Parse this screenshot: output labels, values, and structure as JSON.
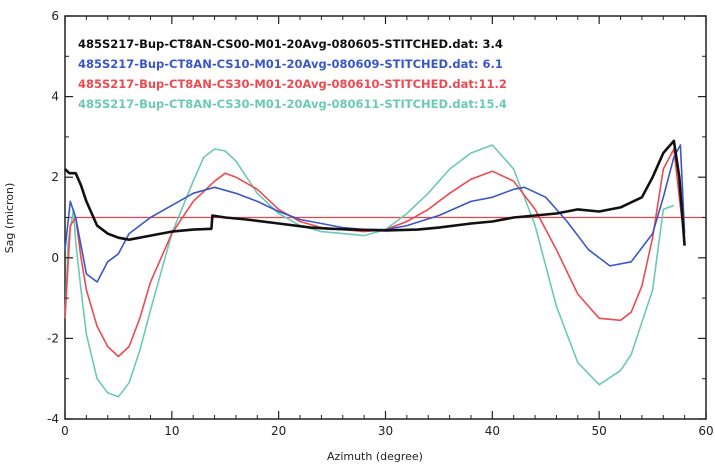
{
  "chart_data": {
    "type": "line",
    "title": "",
    "xlabel": "Azimuth (degree)",
    "ylabel": "Sag (micron)",
    "xlim": [
      0,
      60
    ],
    "ylim": [
      -4,
      6
    ],
    "x_ticks": [
      "0",
      "10",
      "20",
      "30",
      "40",
      "50",
      "60"
    ],
    "y_ticks": [
      "-4",
      "-2",
      "0",
      "2",
      "4",
      "6"
    ],
    "grid": false,
    "legend_position": "top-left",
    "reference_line": {
      "y": 1.0,
      "color": "#e8454d"
    },
    "series": [
      {
        "name": "485S217-Bup-CT8AN-CS00-M01-20Avg-080605-STITCHED.dat: 3.4",
        "color": "#111111",
        "x": [
          0,
          0.4,
          1,
          1.5,
          2,
          3,
          4,
          5,
          6,
          8,
          10,
          12,
          13.7,
          13.8,
          15,
          17,
          20,
          23,
          25,
          27,
          30,
          33,
          35,
          38,
          40,
          42,
          44,
          46,
          48,
          50,
          52,
          54,
          55,
          56,
          57,
          57.5,
          58
        ],
        "y": [
          2.2,
          2.1,
          2.1,
          1.8,
          1.4,
          0.8,
          0.6,
          0.5,
          0.45,
          0.55,
          0.65,
          0.7,
          0.72,
          1.05,
          1.0,
          0.95,
          0.85,
          0.75,
          0.72,
          0.7,
          0.68,
          0.7,
          0.75,
          0.85,
          0.9,
          1.0,
          1.05,
          1.1,
          1.2,
          1.15,
          1.25,
          1.5,
          2.0,
          2.6,
          2.9,
          2.0,
          0.3
        ]
      },
      {
        "name": "485S217-Bup-CT8AN-CS10-M01-20Avg-080609-STITCHED.dat: 6.1",
        "color": "#3a57c9",
        "x": [
          0,
          0.5,
          1,
          2,
          3,
          4,
          5,
          6,
          8,
          10,
          12,
          14,
          16,
          18,
          20,
          22,
          24,
          26,
          28,
          30,
          32,
          35,
          38,
          40,
          42,
          43,
          45,
          47,
          49,
          51,
          53,
          55,
          56,
          57,
          57.6,
          58
        ],
        "y": [
          0.2,
          1.4,
          1.0,
          -0.4,
          -0.6,
          -0.1,
          0.1,
          0.6,
          1.0,
          1.3,
          1.6,
          1.75,
          1.6,
          1.4,
          1.15,
          0.95,
          0.85,
          0.75,
          0.7,
          0.7,
          0.8,
          1.05,
          1.4,
          1.5,
          1.7,
          1.75,
          1.5,
          0.9,
          0.2,
          -0.2,
          -0.1,
          0.6,
          1.5,
          2.5,
          2.8,
          0.6
        ]
      },
      {
        "name": "485S217-Bup-CT8AN-CS30-M01-20Avg-080610-STITCHED.dat:11.2",
        "color": "#ec4a50",
        "x": [
          0,
          0.5,
          1,
          1.5,
          2,
          3,
          4,
          5,
          6,
          7,
          8,
          10,
          12,
          14,
          15,
          16,
          18,
          20,
          22,
          24,
          26,
          28,
          30,
          32,
          34,
          36,
          38,
          40,
          42,
          44,
          46,
          48,
          50,
          52,
          53,
          54,
          55,
          56,
          57,
          57.5,
          58
        ],
        "y": [
          -1.5,
          0.8,
          1.0,
          0.0,
          -0.8,
          -1.7,
          -2.2,
          -2.45,
          -2.2,
          -1.5,
          -0.6,
          0.6,
          1.4,
          1.9,
          2.1,
          2.0,
          1.7,
          1.2,
          0.9,
          0.75,
          0.7,
          0.65,
          0.7,
          0.9,
          1.2,
          1.6,
          1.95,
          2.15,
          1.9,
          1.2,
          0.2,
          -0.9,
          -1.5,
          -1.55,
          -1.35,
          -0.7,
          0.5,
          2.2,
          2.7,
          1.5,
          0.4
        ]
      },
      {
        "name": "485S217-Bup-CT8AN-CS30-M01-20Avg-080611-STITCHED.dat:15.4",
        "color": "#6cc9b5",
        "x": [
          0,
          0.3,
          0.8,
          1,
          1.5,
          2,
          3,
          4,
          5,
          6,
          7,
          8,
          10,
          12,
          13,
          14,
          15,
          16,
          18,
          20,
          22,
          24,
          26,
          28,
          30,
          32,
          34,
          36,
          38,
          40,
          42,
          44,
          46,
          48,
          50,
          52,
          53,
          54,
          55,
          56,
          57
        ],
        "y": [
          -1.5,
          0.4,
          1.2,
          0.4,
          -0.8,
          -1.9,
          -3.0,
          -3.35,
          -3.45,
          -3.1,
          -2.3,
          -1.3,
          0.6,
          1.9,
          2.5,
          2.7,
          2.65,
          2.4,
          1.6,
          1.1,
          0.8,
          0.65,
          0.6,
          0.55,
          0.7,
          1.1,
          1.6,
          2.2,
          2.6,
          2.8,
          2.2,
          0.8,
          -1.2,
          -2.6,
          -3.15,
          -2.8,
          -2.4,
          -1.6,
          -0.8,
          1.2,
          1.3
        ]
      }
    ]
  }
}
